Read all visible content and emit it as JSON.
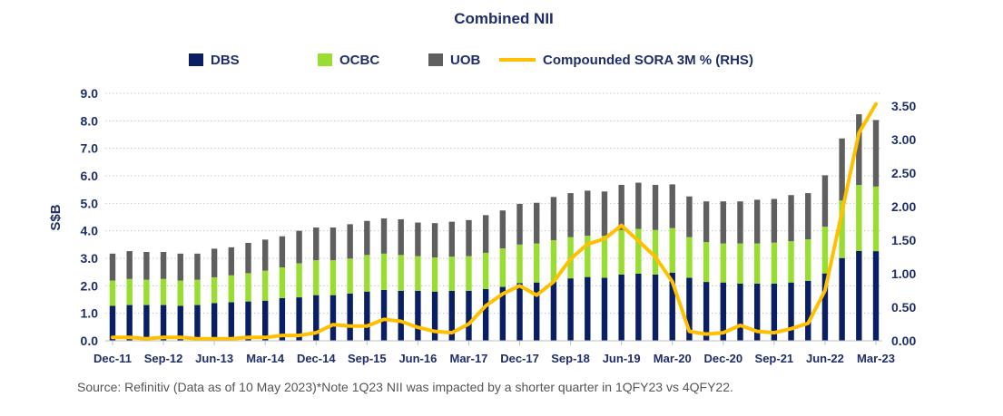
{
  "chart_data": {
    "type": "bar",
    "title": "Combined NII",
    "ylabel": "S$B",
    "ylabel_right": "",
    "ylim": [
      0,
      9.0
    ],
    "ylim_right": [
      0,
      3.5
    ],
    "stacked": true,
    "grid": true,
    "legend_position": "top",
    "yticks": [
      "0.0",
      "1.0",
      "2.0",
      "3.0",
      "4.0",
      "5.0",
      "6.0",
      "7.0",
      "8.0",
      "9.0"
    ],
    "yticks_right": [
      "0.00",
      "0.50",
      "1.00",
      "1.50",
      "2.00",
      "2.50",
      "3.00",
      "3.50"
    ],
    "xtick_labels": [
      "Dec-11",
      "Sep-12",
      "Jun-13",
      "Mar-14",
      "Dec-14",
      "Sep-15",
      "Jun-16",
      "Mar-17",
      "Dec-17",
      "Sep-18",
      "Jun-19",
      "Mar-20",
      "Dec-20",
      "Sep-21",
      "Jun-22",
      "Mar-23"
    ],
    "categories": [
      "Dec-11",
      "Mar-12",
      "Jun-12",
      "Sep-12",
      "Dec-12",
      "Mar-13",
      "Jun-13",
      "Sep-13",
      "Dec-13",
      "Mar-14",
      "Jun-14",
      "Sep-14",
      "Dec-14",
      "Mar-15",
      "Jun-15",
      "Sep-15",
      "Dec-15",
      "Mar-16",
      "Jun-16",
      "Sep-16",
      "Dec-16",
      "Mar-17",
      "Jun-17",
      "Sep-17",
      "Dec-17",
      "Mar-18",
      "Jun-18",
      "Sep-18",
      "Dec-18",
      "Mar-19",
      "Jun-19",
      "Sep-19",
      "Dec-19",
      "Mar-20",
      "Jun-20",
      "Sep-20",
      "Dec-20",
      "Mar-21",
      "Jun-21",
      "Sep-21",
      "Dec-21",
      "Mar-22",
      "Jun-22",
      "Sep-22",
      "Dec-22",
      "Mar-23"
    ],
    "series": [
      {
        "name": "DBS",
        "color": "#0a1f63",
        "axis": "left",
        "values": [
          1.27,
          1.3,
          1.3,
          1.3,
          1.27,
          1.3,
          1.37,
          1.4,
          1.43,
          1.46,
          1.55,
          1.58,
          1.66,
          1.66,
          1.72,
          1.79,
          1.85,
          1.82,
          1.82,
          1.79,
          1.82,
          1.82,
          1.88,
          1.96,
          2.1,
          2.12,
          2.15,
          2.27,
          2.32,
          2.29,
          2.41,
          2.44,
          2.41,
          2.48,
          2.29,
          2.14,
          2.12,
          2.08,
          2.08,
          2.08,
          2.12,
          2.18,
          2.45,
          3.01,
          3.27,
          3.26
        ]
      },
      {
        "name": "OCBC",
        "color": "#99dd33",
        "axis": "left",
        "values": [
          0.92,
          0.95,
          0.92,
          0.95,
          0.92,
          0.92,
          0.94,
          0.98,
          1.03,
          1.09,
          1.12,
          1.24,
          1.27,
          1.27,
          1.27,
          1.33,
          1.32,
          1.3,
          1.26,
          1.24,
          1.24,
          1.26,
          1.32,
          1.4,
          1.4,
          1.42,
          1.51,
          1.5,
          1.5,
          1.53,
          1.62,
          1.63,
          1.62,
          1.62,
          1.48,
          1.45,
          1.42,
          1.46,
          1.46,
          1.49,
          1.5,
          1.51,
          1.7,
          2.09,
          2.4,
          2.35
        ]
      },
      {
        "name": "UOB",
        "color": "#5f5f5f",
        "axis": "left",
        "values": [
          0.98,
          1.01,
          1.01,
          0.98,
          0.98,
          0.95,
          1.04,
          1.02,
          1.1,
          1.13,
          1.13,
          1.18,
          1.19,
          1.19,
          1.25,
          1.24,
          1.28,
          1.3,
          1.22,
          1.25,
          1.27,
          1.31,
          1.37,
          1.38,
          1.48,
          1.48,
          1.57,
          1.6,
          1.64,
          1.61,
          1.64,
          1.68,
          1.64,
          1.59,
          1.48,
          1.48,
          1.53,
          1.53,
          1.59,
          1.59,
          1.68,
          1.68,
          1.87,
          2.26,
          2.57,
          2.42
        ]
      },
      {
        "name": "Compounded SORA 3M % (RHS)",
        "color": "#ffc000",
        "type": "line",
        "axis": "right",
        "values": [
          0.05,
          0.05,
          0.03,
          0.05,
          0.05,
          0.03,
          0.03,
          0.03,
          0.05,
          0.05,
          0.08,
          0.08,
          0.12,
          0.24,
          0.22,
          0.22,
          0.32,
          0.29,
          0.2,
          0.14,
          0.12,
          0.25,
          0.52,
          0.7,
          0.82,
          0.68,
          0.88,
          1.22,
          1.44,
          1.52,
          1.72,
          1.49,
          1.25,
          0.88,
          0.14,
          0.1,
          0.12,
          0.23,
          0.14,
          0.12,
          0.18,
          0.26,
          0.75,
          1.92,
          3.1,
          3.53
        ]
      }
    ],
    "source_note": "Source: Refinitiv (Data as of 10 May 2023)*Note 1Q23 NII was impacted by a shorter quarter in 1QFY23 vs 4QFY22."
  }
}
